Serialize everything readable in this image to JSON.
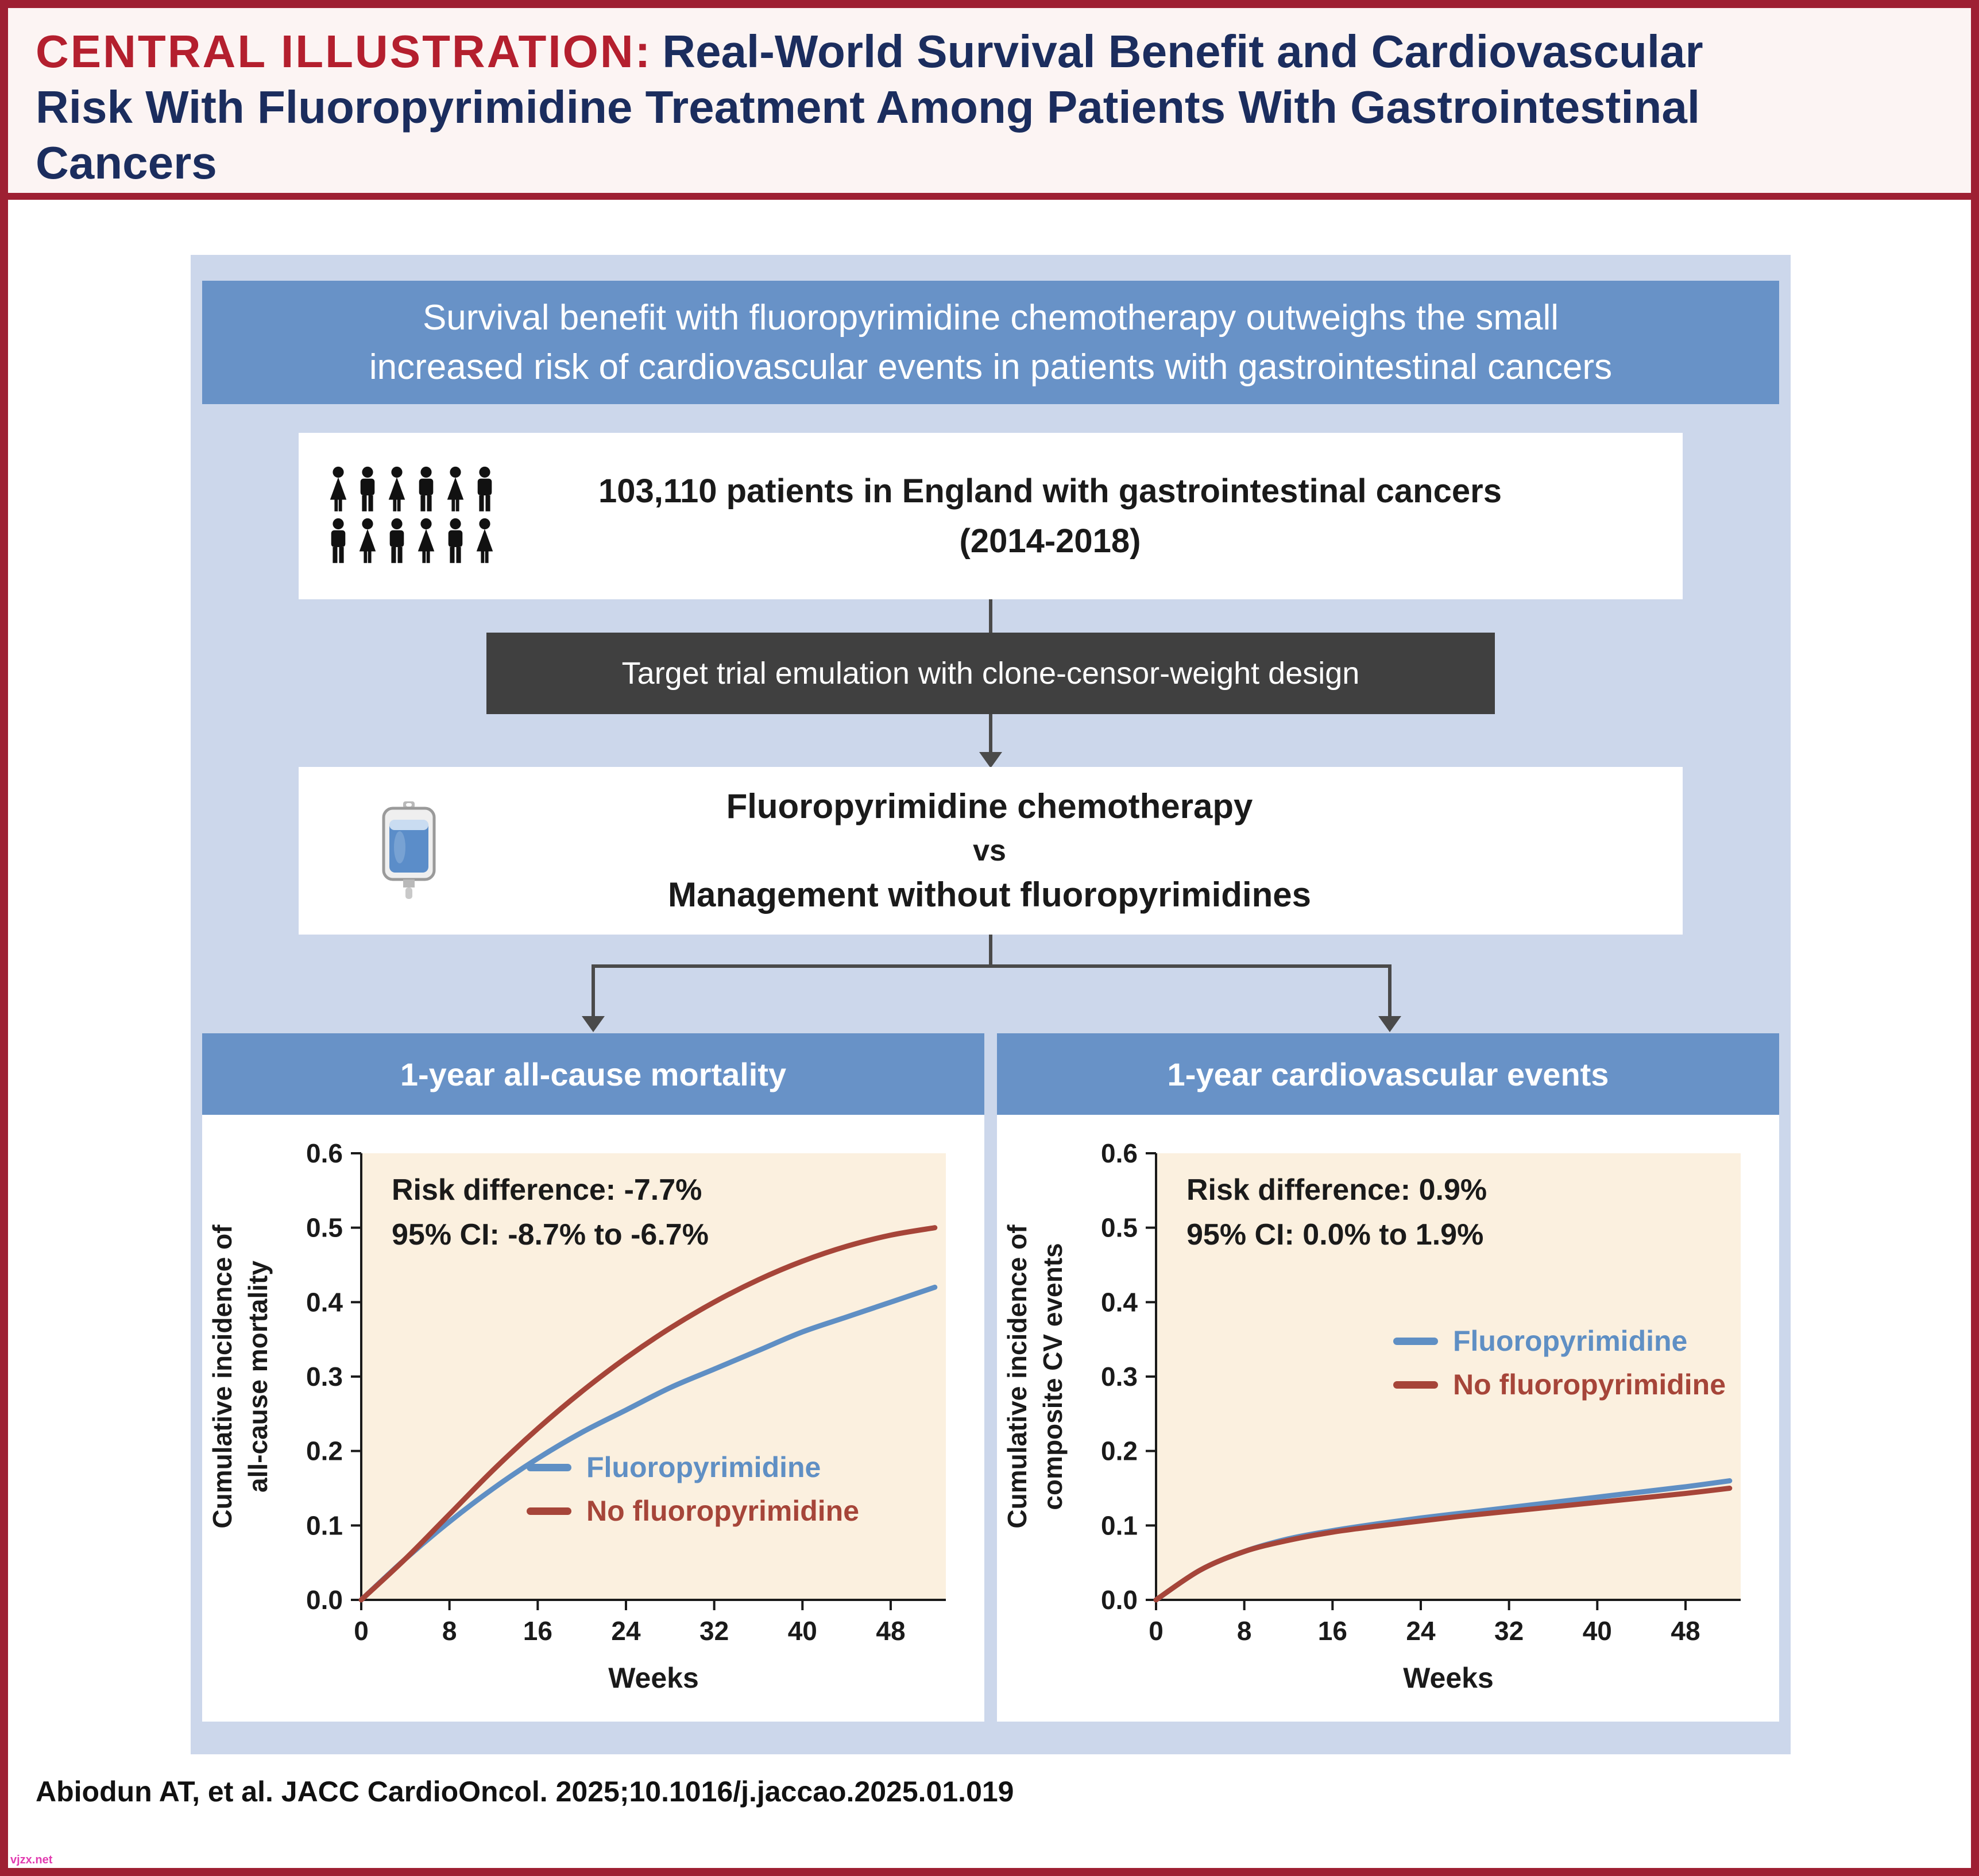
{
  "banner": {
    "label": "CENTRAL ILLUSTRATION:",
    "title": "Real-World Survival Benefit and Cardiovascular\nRisk With Fluoropyrimidine Treatment Among Patients With Gastrointestinal\nCancers"
  },
  "flow": {
    "summary": "Survival benefit with fluoropyrimidine chemotherapy outweighs the small\nincreased risk of cardiovascular events in patients with gastrointestinal cancers",
    "population": {
      "icon": "patients-pictogram",
      "line1": "103,110 patients in England with gastrointestinal cancers",
      "line2": "(2014-2018)"
    },
    "method": "Target trial emulation with clone-censor-weight design",
    "comparison": {
      "icon": "iv-bag",
      "line1": "Fluoropyrimidine chemotherapy",
      "line2": "vs",
      "line3": "Management without fluoropyrimidines"
    }
  },
  "chart_data": [
    {
      "type": "line",
      "title": "1-year all-cause mortality",
      "xlabel": "Weeks",
      "ylabel": "Cumulative incidence of\nall-cause mortality",
      "xlim": [
        0,
        53
      ],
      "ylim": [
        0,
        0.6
      ],
      "xticks": [
        0,
        8,
        16,
        24,
        32,
        40,
        48
      ],
      "yticks": [
        0.0,
        0.1,
        0.2,
        0.3,
        0.4,
        0.5,
        0.6
      ],
      "grid": false,
      "legend_position": "lower-right",
      "annotation": "Risk difference: -7.7%\n95% CI: -8.7% to -6.7%",
      "x": [
        0,
        4,
        8,
        12,
        16,
        20,
        24,
        28,
        32,
        36,
        40,
        44,
        48,
        52
      ],
      "series": [
        {
          "name": "Fluoropyrimidine",
          "color": "#5f8fc4",
          "values": [
            0,
            0.055,
            0.105,
            0.15,
            0.19,
            0.225,
            0.255,
            0.285,
            0.31,
            0.335,
            0.36,
            0.38,
            0.4,
            0.42
          ]
        },
        {
          "name": "No fluoropyrimidine",
          "color": "#a64539",
          "values": [
            0,
            0.055,
            0.115,
            0.175,
            0.23,
            0.28,
            0.325,
            0.365,
            0.4,
            0.43,
            0.455,
            0.475,
            0.49,
            0.5
          ]
        }
      ]
    },
    {
      "type": "line",
      "title": "1-year cardiovascular events",
      "xlabel": "Weeks",
      "ylabel": "Cumulative incidence of\ncomposite CV events",
      "xlim": [
        0,
        53
      ],
      "ylim": [
        0,
        0.6
      ],
      "xticks": [
        0,
        8,
        16,
        24,
        32,
        40,
        48
      ],
      "yticks": [
        0.0,
        0.1,
        0.2,
        0.3,
        0.4,
        0.5,
        0.6
      ],
      "grid": false,
      "legend_position": "center-right",
      "annotation": "Risk difference: 0.9%\n95% CI: 0.0% to 1.9%",
      "x": [
        0,
        4,
        8,
        12,
        16,
        20,
        24,
        28,
        32,
        36,
        40,
        44,
        48,
        52
      ],
      "series": [
        {
          "name": "Fluoropyrimidine",
          "color": "#5f8fc4",
          "values": [
            0,
            0.04,
            0.065,
            0.082,
            0.093,
            0.102,
            0.11,
            0.117,
            0.124,
            0.131,
            0.138,
            0.145,
            0.152,
            0.16
          ]
        },
        {
          "name": "No fluoropyrimidine",
          "color": "#a64539",
          "values": [
            0,
            0.04,
            0.065,
            0.08,
            0.091,
            0.099,
            0.106,
            0.113,
            0.119,
            0.125,
            0.131,
            0.137,
            0.143,
            0.15
          ]
        }
      ]
    }
  ],
  "citation": "Abiodun AT, et al. JACC CardioOncol. 2025;10.1016/j.jaccao.2025.01.019",
  "watermark": "vjzx.net",
  "colors": {
    "frame_red": "#9e2033",
    "title_red": "#b41f2e",
    "title_navy": "#1b2d5e",
    "panel_blue": "#ccd7eb",
    "header_blue": "#6892c7",
    "dark_box": "#404040",
    "plot_bg": "#fbf0df",
    "line_blue": "#5f8fc4",
    "line_red": "#a64539"
  }
}
